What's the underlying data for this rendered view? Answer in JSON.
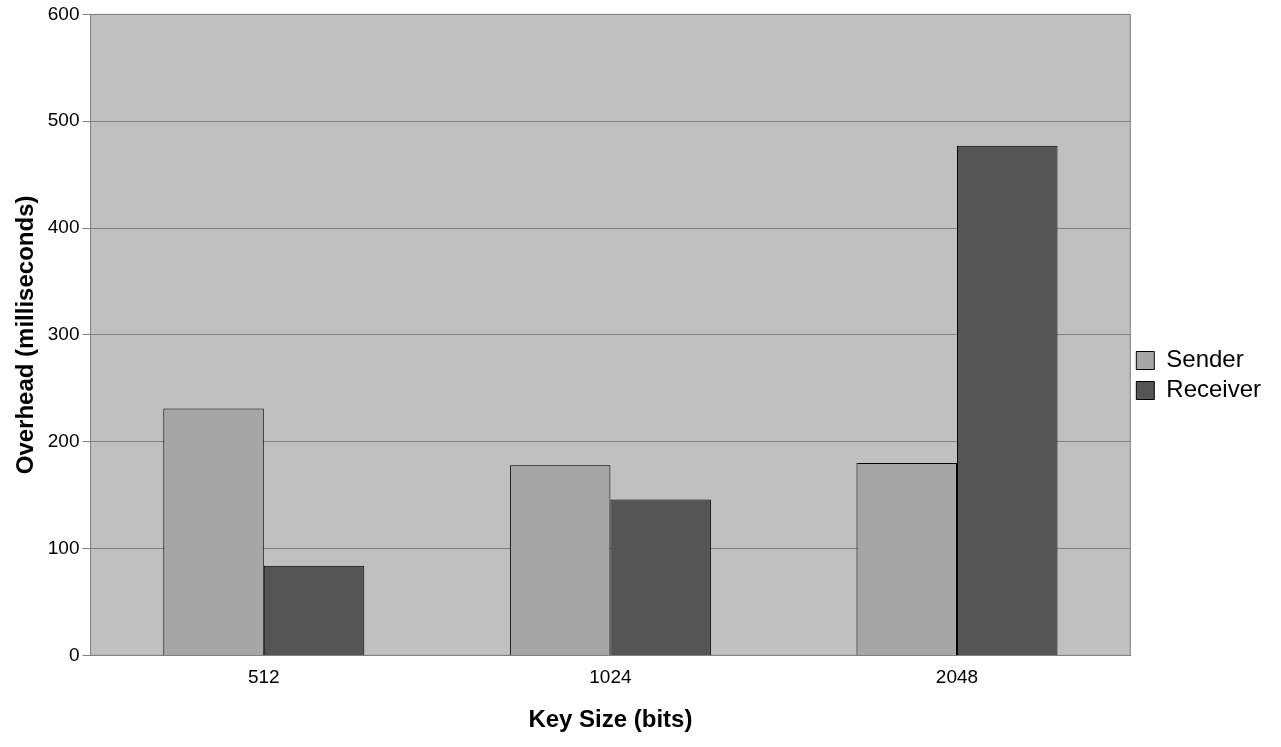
{
  "chart_data": {
    "type": "bar",
    "xlabel": "Key Size (bits)",
    "ylabel": "Overhead (milliseconds)",
    "categories": [
      "512",
      "1024",
      "2048"
    ],
    "series": [
      {
        "name": "Sender",
        "color": "#a6a6a6",
        "values": [
          231,
          178,
          180
        ]
      },
      {
        "name": "Receiver",
        "color": "#555555",
        "values": [
          84,
          146,
          477
        ]
      }
    ],
    "ylim": [
      0,
      600
    ],
    "yticks": [
      0,
      100,
      200,
      300,
      400,
      500,
      600
    ],
    "grid": "y",
    "legend": "right"
  }
}
